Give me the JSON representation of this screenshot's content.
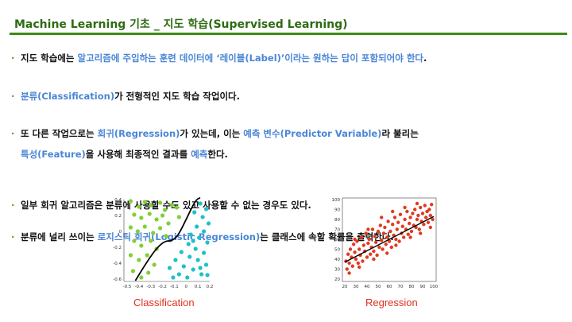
{
  "header": {
    "title": "Machine Learning 기초 _ 지도 학습(Supervised Learning)"
  },
  "bullets": {
    "b1": {
      "t1": "지도 학습에는 ",
      "h1": "알고리즘에 주입하는 훈련 데이터에 ‘레이블(Label)’이라는 원하는 답이 포함되어야 한다",
      "t2": "."
    },
    "b2": {
      "h1": "분류(Classification)",
      "t1": "가 전형적인 지도 학습 작업이다."
    },
    "b3": {
      "t1": "또 다른 작업으로는 ",
      "h1": "회귀(Regression)",
      "t2": "가 있는데, 이는 ",
      "h2": "예측 변수(Predictor Variable)",
      "t3": "라 불리는",
      "h3": "특성(Feature)",
      "t4": "을 사용해 최종적인 결과를 ",
      "h4": "예측",
      "t5": "한다."
    },
    "b4": {
      "t1": "일부 회귀 알고리즘은 분류에 사용할 수도 있고 사용할 수 없는 경우도 있다."
    },
    "b5": {
      "t1": "분류에 널리 쓰이는 ",
      "h1": "로지스틱 회귀(Logistic Regression)",
      "t2": "는 클래스에 속할 확률을 출력한다."
    }
  },
  "colors": {
    "title": "#2e6b12",
    "accent_bar": "#3f8a1a",
    "highlight": "#4a86d6",
    "caption": "#e0301e",
    "class_a": "#7fd133",
    "class_b": "#1fc0c8",
    "regression_points": "#e03a20"
  },
  "chart_data": [
    {
      "type": "scatter",
      "caption": "Classification",
      "xticks": [
        "-0.5",
        "-0.4",
        "-0.3",
        "-0.2",
        "-0.1",
        "0",
        "0.1",
        "0.2"
      ],
      "yticks": [
        "0.4",
        "0.2",
        "0",
        "-0.2",
        "-0.4",
        "-0.6"
      ],
      "xlim": [
        -0.5,
        0.2
      ],
      "ylim": [
        -0.6,
        0.4
      ],
      "series": [
        {
          "points": [
            [
              -0.47,
              0.38
            ],
            [
              -0.4,
              0.31
            ],
            [
              -0.35,
              0.37
            ],
            [
              -0.3,
              0.33
            ],
            [
              -0.22,
              0.36
            ],
            [
              -0.18,
              0.27
            ],
            [
              -0.12,
              0.33
            ],
            [
              -0.44,
              0.21
            ],
            [
              -0.38,
              0.17
            ],
            [
              -0.31,
              0.22
            ],
            [
              -0.25,
              0.15
            ],
            [
              -0.2,
              0.2
            ],
            [
              -0.15,
              0.1
            ],
            [
              -0.47,
              0.05
            ],
            [
              -0.41,
              0.0
            ],
            [
              -0.35,
              0.06
            ],
            [
              -0.28,
              -0.02
            ],
            [
              -0.22,
              0.04
            ],
            [
              -0.17,
              -0.06
            ],
            [
              -0.44,
              -0.12
            ],
            [
              -0.38,
              -0.18
            ],
            [
              -0.3,
              -0.12
            ],
            [
              -0.25,
              -0.22
            ],
            [
              -0.47,
              -0.3
            ],
            [
              -0.4,
              -0.36
            ],
            [
              -0.33,
              -0.3
            ],
            [
              -0.27,
              -0.42
            ],
            [
              -0.45,
              -0.5
            ],
            [
              -0.38,
              -0.58
            ],
            [
              -0.32,
              -0.52
            ],
            [
              -0.08,
              0.3
            ],
            [
              -0.06,
              0.18
            ]
          ]
        },
        {
          "points": [
            [
              0.12,
              0.35
            ],
            [
              0.17,
              0.28
            ],
            [
              0.07,
              0.24
            ],
            [
              0.14,
              0.18
            ],
            [
              0.19,
              0.1
            ],
            [
              0.09,
              0.06
            ],
            [
              0.15,
              0.0
            ],
            [
              0.04,
              -0.04
            ],
            [
              0.11,
              -0.08
            ],
            [
              0.18,
              -0.14
            ],
            [
              0.02,
              -0.16
            ],
            [
              0.08,
              -0.22
            ],
            [
              0.15,
              -0.27
            ],
            [
              -0.04,
              -0.26
            ],
            [
              0.03,
              -0.32
            ],
            [
              0.1,
              -0.36
            ],
            [
              0.17,
              -0.42
            ],
            [
              -0.09,
              -0.36
            ],
            [
              -0.02,
              -0.44
            ],
            [
              0.06,
              -0.48
            ],
            [
              0.13,
              -0.54
            ],
            [
              -0.14,
              -0.46
            ],
            [
              -0.06,
              -0.54
            ],
            [
              0.01,
              -0.58
            ],
            [
              0.18,
              -0.55
            ],
            [
              -0.11,
              -0.58
            ],
            [
              0.06,
              -0.12
            ],
            [
              0.12,
              -0.46
            ]
          ]
        }
      ]
    },
    {
      "type": "scatter",
      "caption": "Regression",
      "xticks": [
        "20",
        "30",
        "40",
        "50",
        "60",
        "70",
        "80",
        "90",
        "100"
      ],
      "yticks": [
        "100",
        "90",
        "80",
        "70",
        "60",
        "50",
        "40",
        "30",
        "20"
      ],
      "xlim": [
        20,
        100
      ],
      "ylim": [
        20,
        100
      ],
      "trendline": {
        "from": [
          20,
          37
        ],
        "to": [
          100,
          83
        ]
      },
      "series": [
        {
          "points": [
            [
              21,
              38
            ],
            [
              22,
              30
            ],
            [
              23,
              45
            ],
            [
              24,
              36
            ],
            [
              25,
              50
            ],
            [
              26,
              42
            ],
            [
              27,
              33
            ],
            [
              28,
              55
            ],
            [
              29,
              47
            ],
            [
              30,
              40
            ],
            [
              31,
              58
            ],
            [
              32,
              36
            ],
            [
              33,
              50
            ],
            [
              34,
              44
            ],
            [
              35,
              62
            ],
            [
              36,
              38
            ],
            [
              37,
              54
            ],
            [
              38,
              48
            ],
            [
              39,
              66
            ],
            [
              40,
              42
            ],
            [
              41,
              56
            ],
            [
              42,
              60
            ],
            [
              43,
              45
            ],
            [
              44,
              52
            ],
            [
              45,
              70
            ],
            [
              46,
              48
            ],
            [
              47,
              63
            ],
            [
              48,
              57
            ],
            [
              49,
              44
            ],
            [
              50,
              68
            ],
            [
              51,
              52
            ],
            [
              52,
              74
            ],
            [
              53,
              59
            ],
            [
              54,
              50
            ],
            [
              55,
              66
            ],
            [
              56,
              72
            ],
            [
              57,
              55
            ],
            [
              58,
              62
            ],
            [
              59,
              78
            ],
            [
              60,
              58
            ],
            [
              61,
              68
            ],
            [
              62,
              52
            ],
            [
              63,
              75
            ],
            [
              64,
              64
            ],
            [
              65,
              82
            ],
            [
              66,
              60
            ],
            [
              67,
              70
            ],
            [
              68,
              77
            ],
            [
              69,
              58
            ],
            [
              70,
              85
            ],
            [
              71,
              66
            ],
            [
              72,
              73
            ],
            [
              73,
              62
            ],
            [
              74,
              80
            ],
            [
              75,
              70
            ],
            [
              76,
              88
            ],
            [
              77,
              65
            ],
            [
              78,
              76
            ],
            [
              79,
              82
            ],
            [
              80,
              68
            ],
            [
              81,
              86
            ],
            [
              82,
              74
            ],
            [
              83,
              90
            ],
            [
              84,
              72
            ],
            [
              85,
              80
            ],
            [
              86,
              84
            ],
            [
              87,
              70
            ],
            [
              88,
              92
            ],
            [
              89,
              78
            ],
            [
              90,
              86
            ],
            [
              91,
              75
            ],
            [
              92,
              94
            ],
            [
              93,
              82
            ],
            [
              94,
              88
            ],
            [
              95,
              77
            ],
            [
              96,
              90
            ],
            [
              97,
              84
            ],
            [
              98,
              95
            ],
            [
              99,
              80
            ],
            [
              24,
              26
            ],
            [
              33,
              32
            ],
            [
              46,
              40
            ],
            [
              58,
              46
            ],
            [
              66,
              54
            ],
            [
              79,
              62
            ],
            [
              88,
              66
            ],
            [
              97,
              72
            ],
            [
              29,
              60
            ],
            [
              41,
              70
            ],
            [
              53,
              82
            ],
            [
              63,
              88
            ],
            [
              74,
              92
            ],
            [
              85,
              96
            ]
          ]
        }
      ]
    }
  ]
}
